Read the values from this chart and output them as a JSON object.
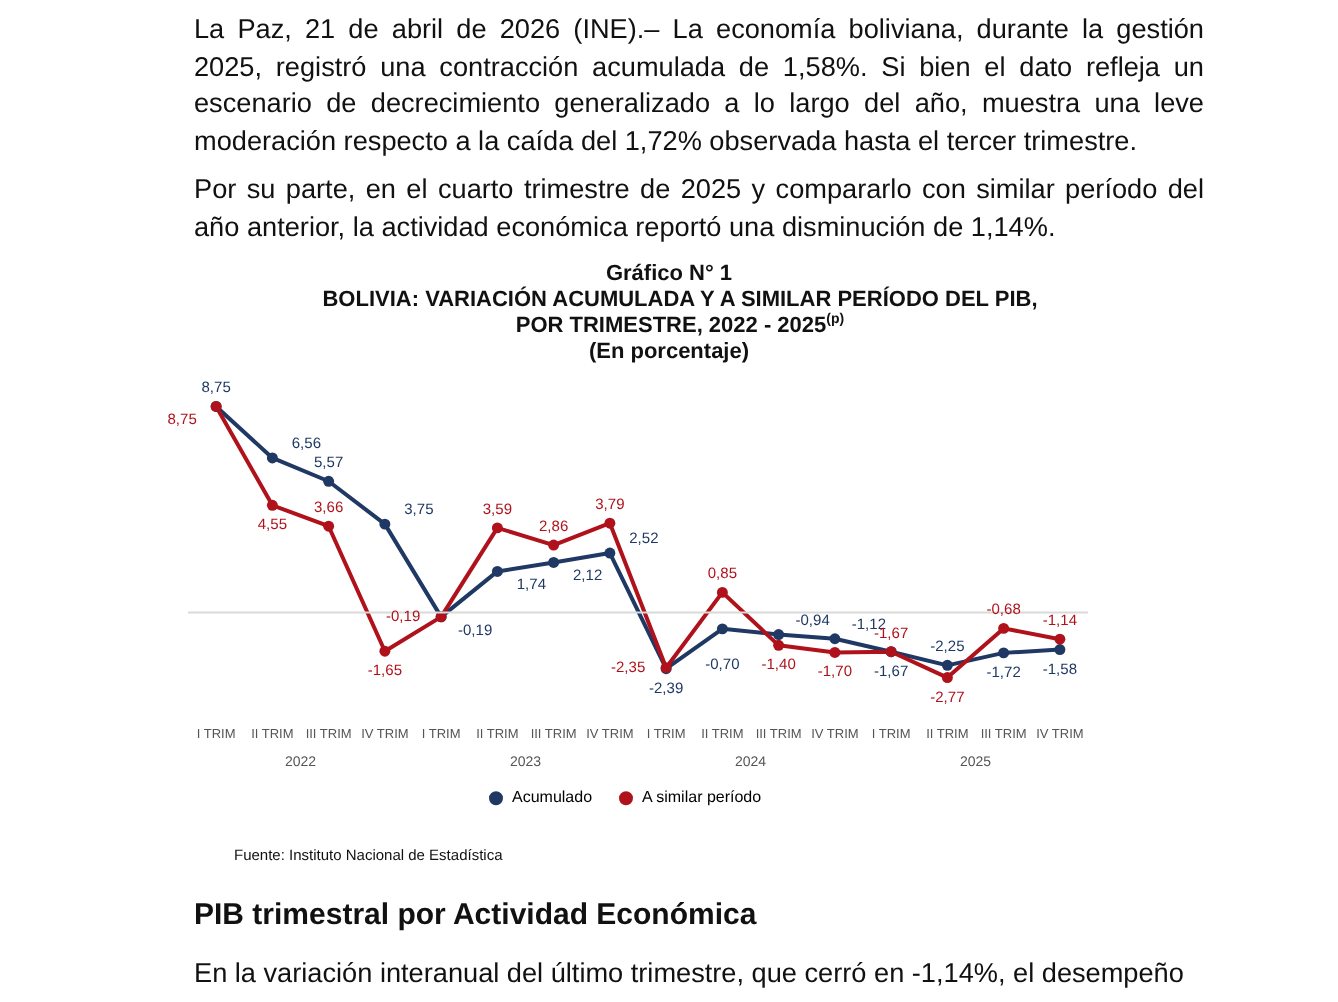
{
  "chart_data": {
    "type": "line",
    "title": "Gráfico N° 1",
    "subtitle": "BOLIVIA: VARIACIÓN ACUMULADA Y A SIMILAR PERÍODO DEL PIB, POR TRIMESTRE, 2022 - 2025$^{(p)}$",
    "ylabel": "(En porcentaje)",
    "categories": [
      "I TRIM",
      "II TRIM",
      "III TRIM",
      "IV TRIM",
      "I TRIM",
      "II TRIM",
      "III TRIM",
      "IV TRIM",
      "I TRIM",
      "II TRIM",
      "III TRIM",
      "IV TRIM",
      "I TRIM",
      "II TRIM",
      "III TRIM",
      "IV TRIM"
    ],
    "series": [
      {
        "name": "Acumulado",
        "color": "#1f3864",
        "values": [
          8.75,
          6.56,
          5.57,
          3.75,
          -0.19,
          1.74,
          2.12,
          2.52,
          -2.39,
          -0.7,
          -0.94,
          -1.12,
          -1.67,
          -2.25,
          -1.72,
          -1.58
        ],
        "value_labels": [
          "8,75",
          "6,56",
          "5,57",
          "3,75",
          "-0,19",
          "1,74",
          "2,12",
          "2,52",
          "-2,39",
          "-0,70",
          "-0,94",
          "-1,12",
          "-1,67",
          "-2,25",
          "-1,72",
          "-1,58"
        ]
      },
      {
        "name": "A similar período",
        "color": "#b0121b",
        "values": [
          8.75,
          4.55,
          3.66,
          -1.65,
          -0.19,
          3.59,
          2.86,
          3.79,
          -2.35,
          0.85,
          -1.4,
          -1.7,
          -1.67,
          -2.77,
          -0.68,
          -1.14
        ],
        "value_labels": [
          "8,75",
          "4,55",
          "3,66",
          "-1,65",
          "-0,19",
          "3,59",
          "2,86",
          "3,79",
          "-2,35",
          "0,85",
          "-1,40",
          "-1,70",
          "-1,67",
          "-2,77",
          "-0,68",
          "-1,14"
        ]
      }
    ],
    "tick_labels": "x",
    "grid": false,
    "legend": "bottom",
    "marker": "circle",
    "line_style": "solid",
    "ref_lines": [
      {
        "axis": "y",
        "value": 0,
        "color": "#d9d9d9"
      }
    ],
    "annotations": [
      "La Paz, 21 de abril de 2026 (INE).– La economía boliviana, durante la gestión 2025, registró una contracción acumulada de 1,58%. Si bien el dato refleja un escenario de decrecimiento generalizado a lo largo del año, muestra una leve moderación respecto a la caída del 1,72% observada hasta el tercer trimestre.",
      "Por su parte, en el cuarto trimestre de 2025 y compararlo con similar período del año anterior, la actividad económica reportó una disminución de 1,14%.",
      "2022",
      "2023",
      "2024",
      "2025",
      "Fuente: Instituto Nacional de Estadística",
      "PIB trimestral por Actividad Económica",
      "En la variación interanual del último trimestre, que cerró en -1,14%, el desempeño"
    ]
  }
}
